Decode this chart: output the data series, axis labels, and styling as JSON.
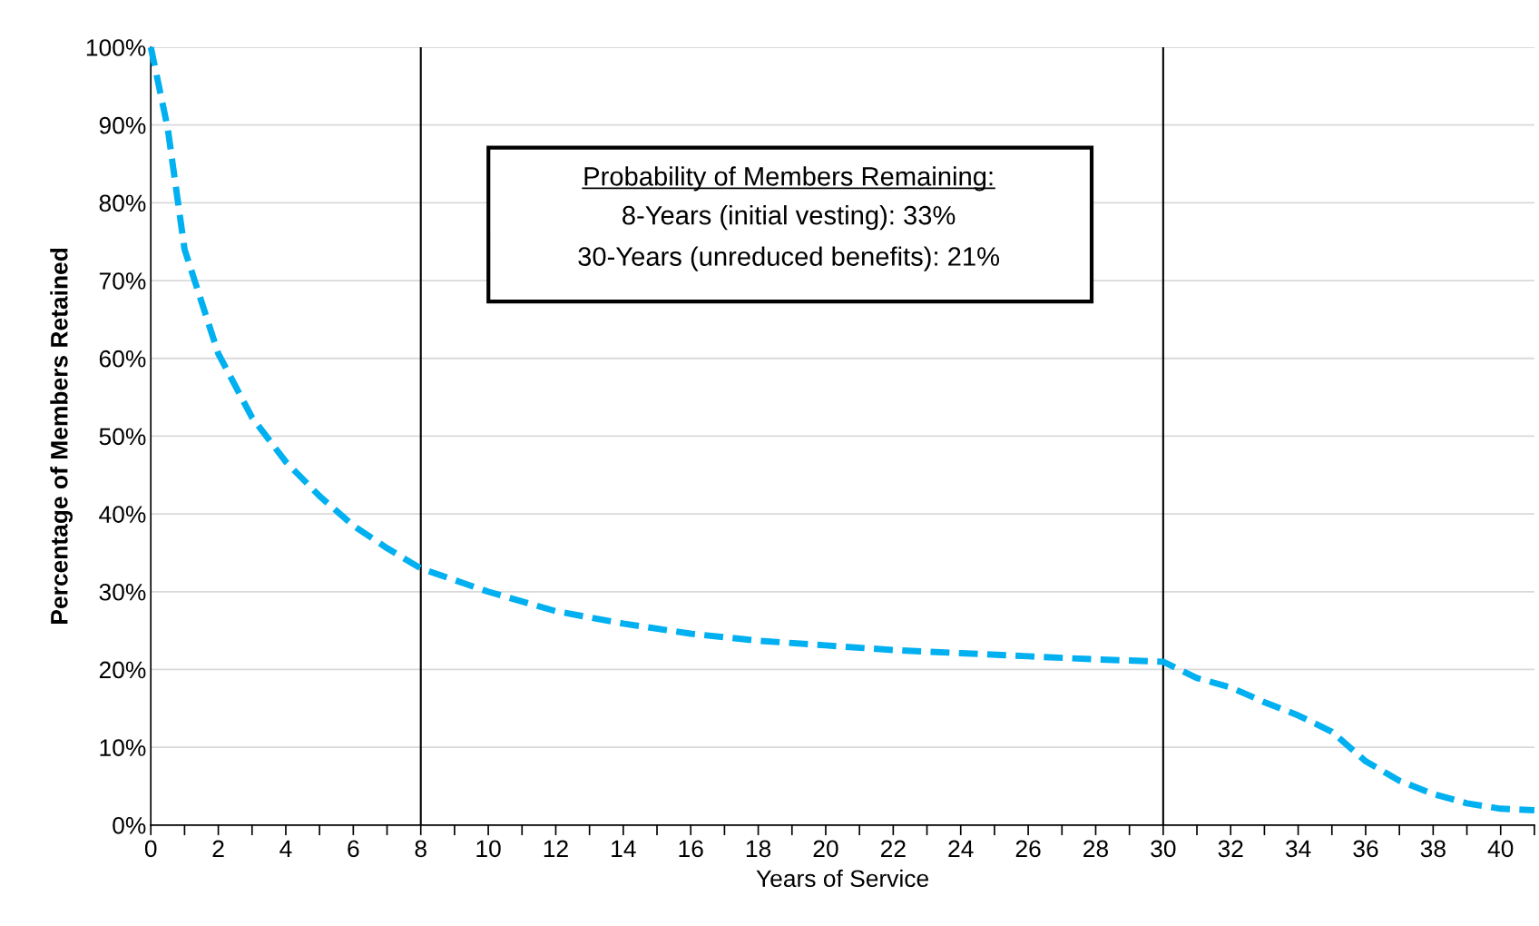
{
  "chart_data": {
    "type": "line",
    "xlabel": "Years of Service",
    "ylabel": "Percentage of Members Retained",
    "x": [
      0,
      0.5,
      1,
      2,
      3,
      4,
      5,
      6,
      7,
      8,
      10,
      12,
      14,
      16,
      18,
      20,
      22,
      24,
      26,
      28,
      30,
      31,
      32,
      33,
      34,
      35,
      36,
      37,
      38,
      39,
      40,
      41
    ],
    "series": [
      {
        "color": "#00b0f0",
        "values": [
          100,
          89.6,
          74,
          60.6,
          52.4,
          46.7,
          42.3,
          38.5,
          35.6,
          33,
          30,
          27.5,
          25.9,
          24.6,
          23.7,
          23.1,
          22.5,
          22.1,
          21.7,
          21.3,
          21,
          18.9,
          17.7,
          15.8,
          14.1,
          12,
          8.2,
          5.7,
          4,
          2.8,
          2.1,
          1.9
        ]
      }
    ],
    "line_style": "dashed",
    "marker": "none",
    "grid": "y",
    "xlim": [
      0,
      41
    ],
    "xticks": [
      0,
      {
        "value": 1,
        "label": null
      },
      2,
      {
        "value": 3,
        "label": null
      },
      4,
      {
        "value": 5,
        "label": null
      },
      6,
      {
        "value": 7,
        "label": null
      },
      8,
      {
        "value": 9,
        "label": null
      },
      10,
      {
        "value": 11,
        "label": null
      },
      12,
      {
        "value": 13,
        "label": null
      },
      14,
      {
        "value": 15,
        "label": null
      },
      16,
      {
        "value": 17,
        "label": null
      },
      18,
      {
        "value": 19,
        "label": null
      },
      20,
      {
        "value": 21,
        "label": null
      },
      22,
      {
        "value": 23,
        "label": null
      },
      24,
      {
        "value": 25,
        "label": null
      },
      26,
      {
        "value": 27,
        "label": null
      },
      28,
      {
        "value": 29,
        "label": null
      },
      30,
      {
        "value": 31,
        "label": null
      },
      32,
      {
        "value": 33,
        "label": null
      },
      34,
      {
        "value": 35,
        "label": null
      },
      36,
      {
        "value": 37,
        "label": null
      },
      38,
      {
        "value": 39,
        "label": null
      },
      40,
      {
        "value": 41,
        "label": null
      }
    ],
    "ylim": [
      0,
      100
    ],
    "yticks": [
      {
        "value": 0,
        "label": "0%"
      },
      {
        "value": 10,
        "label": "10%"
      },
      {
        "value": 20,
        "label": "20%"
      },
      {
        "value": 30,
        "label": "30%"
      },
      {
        "value": 40,
        "label": "40%"
      },
      {
        "value": 50,
        "label": "50%"
      },
      {
        "value": 60,
        "label": "60%"
      },
      {
        "value": 70,
        "label": "70%"
      },
      {
        "value": 80,
        "label": "80%"
      },
      {
        "value": 90,
        "label": "90%"
      },
      {
        "value": 100,
        "label": "100%"
      }
    ],
    "ref_lines": [
      {
        "axis": "x",
        "value": 8,
        "color": "#000000",
        "line_style": "solid"
      },
      {
        "axis": "x",
        "value": 30,
        "color": "#000000",
        "line_style": "solid"
      }
    ],
    "annotations": [
      "Probability of Members Remaining:",
      "8-Years (initial vesting): 33%",
      "30-Years (unreduced benefits): 21%"
    ]
  }
}
